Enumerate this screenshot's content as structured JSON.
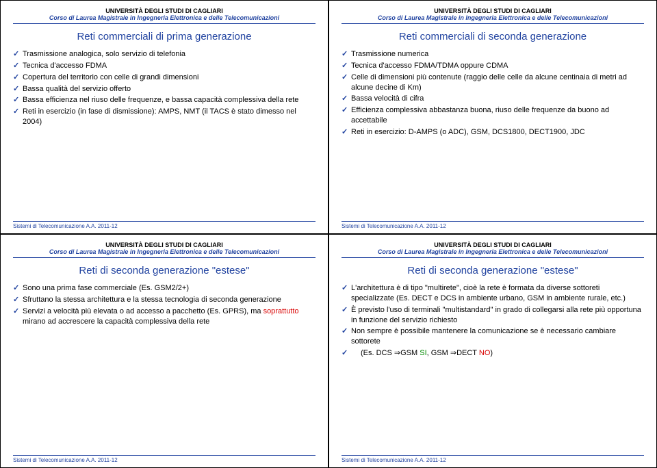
{
  "common": {
    "university": "UNIVERSITÀ DEGLI STUDI DI CAGLIARI",
    "course": "Corso di Laurea Magistrale in Ingegneria Elettronica e delle Telecomunicazioni",
    "footer": "Sistemi di Telecomunicazione A.A. 2011-12"
  },
  "slides": {
    "s1": {
      "title": "Reti commerciali di prima generazione",
      "b1": "Trasmissione analogica, solo servizio di telefonia",
      "b2": "Tecnica d'accesso FDMA",
      "b3": "Copertura del territorio con celle di grandi dimensioni",
      "b4": "Bassa qualità del servizio offerto",
      "b5": "Bassa efficienza nel riuso delle frequenze, e bassa capacità complessiva della rete",
      "b6": "Reti in esercizio (in fase di dismissione): AMPS, NMT (il TACS è stato dimesso nel 2004)"
    },
    "s2": {
      "title": "Reti commerciali di seconda generazione",
      "b1": "Trasmissione numerica",
      "b2": "Tecnica d'accesso FDMA/TDMA oppure CDMA",
      "b3": "Celle di dimensioni più contenute (raggio delle celle da alcune centinaia di metri ad alcune decine di Km)",
      "b4": "Bassa velocità di cifra",
      "b5": "Efficienza complessiva abbastanza buona, riuso delle frequenze da buono ad accettabile",
      "b6": "Reti in esercizio: D-AMPS (o ADC), GSM, DCS1800, DECT1900, JDC"
    },
    "s3": {
      "title": "Reti di seconda generazione \"estese\"",
      "b1": "Sono una prima fase commerciale  (Es. GSM2/2+)",
      "b2": "Sfruttano la stessa architettura e la stessa tecnologia di seconda generazione",
      "b3_a": "Servizi a velocità più elevata o ad accesso a pacchetto (Es. GPRS), ma ",
      "b3_b": "soprattutto",
      "b3_c": " mirano ad accrescere la capacità complessiva della rete"
    },
    "s4": {
      "title": "Reti di seconda generazione \"estese\"",
      "b1": "L'architettura è di tipo \"multirete\", cioè la rete è formata da diverse sottoreti specializzate (Es. DECT e DCS in ambiente urbano, GSM in ambiente rurale, etc.)",
      "b2": "È previsto l'uso di terminali \"multistandard\" in grado di collegarsi alla rete più opportuna in funzione del servizio richiesto",
      "b3": "Non sempre è possibile mantenere la comunicazione se è necessario cambiare sottorete",
      "b4_a": " (Es. DCS ⇒GSM ",
      "b4_b": "SI",
      "b4_c": ", GSM ⇒DECT ",
      "b4_d": "NO",
      "b4_e": ")"
    }
  }
}
